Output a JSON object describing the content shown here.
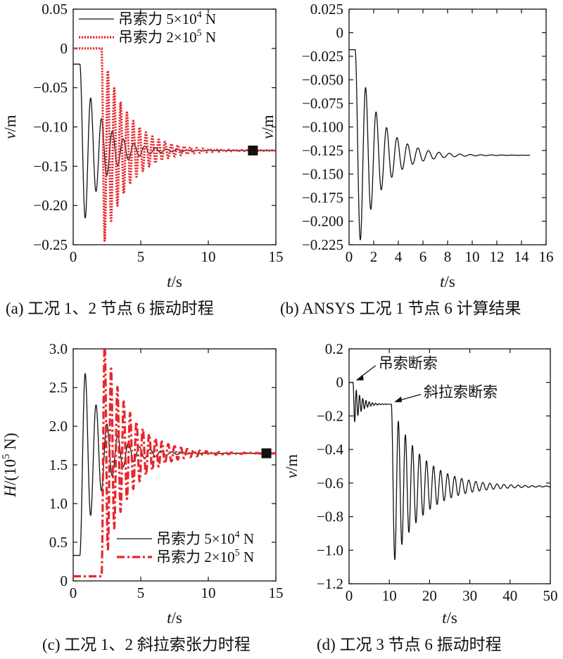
{
  "colors": {
    "black_series": "#111111",
    "red_series": "#e8262c",
    "marker": "#111111"
  },
  "chart_data": [
    {
      "id": "a",
      "type": "line",
      "caption": "(a) 工况 1、2 节点 6 振动时程",
      "xlabel_var": "t",
      "xlabel_unit": "/s",
      "ylabel_var": "v",
      "ylabel_unit": "/m",
      "xlim": [
        0,
        15
      ],
      "ylim": [
        -0.25,
        0.05
      ],
      "xticks": [
        0,
        5,
        10,
        15
      ],
      "xtick_labels": [
        "0",
        "5",
        "10",
        "15"
      ],
      "yticks": [
        0.05,
        0,
        -0.05,
        -0.1,
        -0.15,
        -0.2,
        -0.25
      ],
      "ytick_labels": [
        "0.05",
        "0",
        "−0.05",
        "−0.10",
        "−0.15",
        "−0.20",
        "−0.25"
      ],
      "legend_position": "top-left",
      "series": [
        {
          "name_prefix": "吊索力 5×10",
          "name_exp": "4",
          "name_suffix": " N",
          "style": "solid",
          "color": "#111111",
          "shape": {
            "t0": 0,
            "pre": -0.02,
            "t_start": 0.5,
            "final": -0.13,
            "amp": 0.11,
            "period": 0.8,
            "tau": 1.6,
            "t_end": 15
          }
        },
        {
          "name_prefix": "吊索力 2×10",
          "name_exp": "5",
          "name_suffix": " N",
          "style": "dotted",
          "color": "#e8262c",
          "shape": {
            "t0": 0,
            "pre": 0,
            "t_start": 2.1,
            "final": -0.13,
            "amp": 0.105,
            "period": 0.47,
            "tau": 1.9,
            "t_end": 15
          }
        }
      ],
      "marker": {
        "x": 13.3,
        "y": -0.13,
        "shape": "square"
      }
    },
    {
      "id": "b",
      "type": "line",
      "caption": "(b) ANSYS 工况 1 节点 6 计算结果",
      "xlabel_var": "t",
      "xlabel_unit": "/s",
      "ylabel_var": "v",
      "ylabel_unit": "/m",
      "xlim": [
        0,
        16
      ],
      "ylim": [
        -0.225,
        0.025
      ],
      "xticks": [
        0,
        2,
        4,
        6,
        8,
        10,
        12,
        14,
        16
      ],
      "xtick_labels": [
        "0",
        "2",
        "4",
        "6",
        "8",
        "10",
        "12",
        "14",
        "16"
      ],
      "yticks": [
        0.025,
        0,
        -0.025,
        -0.05,
        -0.075,
        -0.1,
        -0.125,
        -0.15,
        -0.175,
        -0.2,
        -0.225
      ],
      "ytick_labels": [
        "0.025",
        "0",
        "−0.025",
        "−0.050",
        "−0.075",
        "−0.100",
        "−0.125",
        "−0.150",
        "−0.175",
        "−0.200",
        "−0.225"
      ],
      "series": [
        {
          "style": "solid",
          "color": "#111111",
          "shape": {
            "t0": 0,
            "pre": -0.018,
            "t_start": 0.5,
            "final": -0.13,
            "amp": 0.107,
            "period": 0.85,
            "tau": 1.9,
            "t_end": 14.7
          }
        }
      ]
    },
    {
      "id": "c",
      "type": "line",
      "caption": "(c) 工况 1、2 斜拉索张力时程",
      "xlabel_var": "t",
      "xlabel_unit": "/s",
      "ylabel_var": "H",
      "ylabel_unit_prefix": "/(10",
      "ylabel_unit_exp": "5",
      "ylabel_unit_suffix": " N)",
      "xlim": [
        0,
        15
      ],
      "ylim": [
        0,
        3.0
      ],
      "xticks": [
        0,
        5,
        10,
        15
      ],
      "xtick_labels": [
        "0",
        "5",
        "10",
        "15"
      ],
      "yticks": [
        0,
        0.5,
        1.0,
        1.5,
        2.0,
        2.5,
        3.0
      ],
      "ytick_labels": [
        "0",
        "0.5",
        "1.0",
        "1.5",
        "2.0",
        "2.5",
        "3.0"
      ],
      "legend_position": "bottom-right",
      "series": [
        {
          "name_prefix": "吊索力 5×10",
          "name_exp": "4",
          "name_suffix": " N",
          "style": "solid",
          "color": "#111111",
          "shape": {
            "t0": 0,
            "pre": 0.33,
            "t_start": 0.5,
            "final": 1.65,
            "amp": 1.1,
            "period": 0.8,
            "tau": 1.6,
            "t_end": 15
          }
        },
        {
          "name_prefix": "吊索力 2×10",
          "name_exp": "5",
          "name_suffix": " N",
          "style": "dashdot",
          "color": "#e8262c",
          "shape": {
            "t0": 0,
            "pre": 0.06,
            "t_start": 2.1,
            "final": 1.65,
            "amp": 1.28,
            "period": 0.47,
            "tau": 1.9,
            "t_end": 15
          }
        }
      ],
      "marker": {
        "x": 14.3,
        "y": 1.65,
        "shape": "square"
      }
    },
    {
      "id": "d",
      "type": "line",
      "caption": "(d) 工况 3 节点 6 振动时程",
      "xlabel_var": "t",
      "xlabel_unit": "/s",
      "ylabel_var": "v",
      "ylabel_unit": "/m",
      "xlim": [
        0,
        50
      ],
      "ylim": [
        -1.2,
        0.2
      ],
      "xticks": [
        0,
        10,
        20,
        30,
        40,
        50
      ],
      "xtick_labels": [
        "0",
        "10",
        "20",
        "30",
        "40",
        "50"
      ],
      "yticks": [
        0.2,
        0,
        -0.2,
        -0.4,
        -0.6,
        -0.8,
        -1.0,
        -1.2
      ],
      "ytick_labels": [
        "0.2",
        "0",
        "−0.2",
        "−0.4",
        "−0.6",
        "−0.8",
        "−1.0",
        "−1.2"
      ],
      "series": [
        {
          "style": "solid",
          "color": "#111111",
          "segments": [
            {
              "t0": 0,
              "pre": 0,
              "t_start": 1.0,
              "final": -0.13,
              "amp": 0.1,
              "period": 0.8,
              "tau": 1.8,
              "t_end": 10
            },
            {
              "t0": 10,
              "pre": -0.13,
              "t_start": 10.5,
              "final": -0.62,
              "amp": 0.44,
              "period": 1.75,
              "tau": 7.5,
              "t_end": 50
            }
          ]
        }
      ],
      "annotations": [
        {
          "text": "吊索断索",
          "x": 1.0,
          "y": 0.0
        },
        {
          "text": "斜拉索断索",
          "x": 10.5,
          "y": -0.13
        }
      ]
    }
  ]
}
